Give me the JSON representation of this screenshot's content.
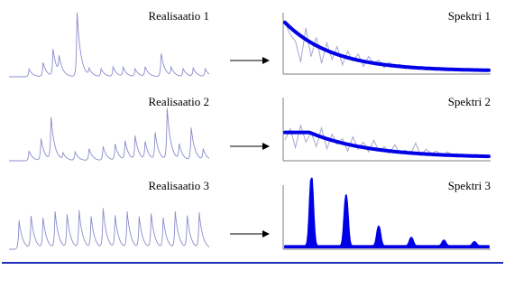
{
  "rows": [
    {
      "realization_label": "Realisaatio 1",
      "spectrum_label": "Spektri 1",
      "realization_peaks": [
        {
          "pos": 0.1,
          "h": 0.12
        },
        {
          "pos": 0.17,
          "h": 0.22
        },
        {
          "pos": 0.22,
          "h": 0.42
        },
        {
          "pos": 0.25,
          "h": 0.25
        },
        {
          "pos": 0.34,
          "h": 1.0
        },
        {
          "pos": 0.4,
          "h": 0.1
        },
        {
          "pos": 0.46,
          "h": 0.12
        },
        {
          "pos": 0.52,
          "h": 0.15
        },
        {
          "pos": 0.57,
          "h": 0.14
        },
        {
          "pos": 0.63,
          "h": 0.12
        },
        {
          "pos": 0.68,
          "h": 0.15
        },
        {
          "pos": 0.76,
          "h": 0.36
        },
        {
          "pos": 0.81,
          "h": 0.13
        },
        {
          "pos": 0.87,
          "h": 0.12
        },
        {
          "pos": 0.92,
          "h": 0.13
        },
        {
          "pos": 0.98,
          "h": 0.12
        }
      ],
      "spectrum_noisy": [
        0.92,
        0.7,
        0.58,
        0.2,
        0.82,
        0.3,
        0.65,
        0.18,
        0.55,
        0.25,
        0.48,
        0.15,
        0.4,
        0.22,
        0.35,
        0.12,
        0.3,
        0.18,
        0.24,
        0.1,
        0.2,
        0.12,
        0.16,
        0.08,
        0.13,
        0.09,
        0.11,
        0.07,
        0.1,
        0.06,
        0.08,
        0.05,
        0.07,
        0.05,
        0.06,
        0.04,
        0.05,
        0.04,
        0.04,
        0.03
      ],
      "spectrum_smooth": {
        "type": "decay",
        "start": 0.92,
        "end": 0.04,
        "rate": 4.2,
        "knee": 0.0
      }
    },
    {
      "realization_label": "Realisaatio 2",
      "spectrum_label": "Spektri 2",
      "realization_peaks": [
        {
          "pos": 0.1,
          "h": 0.18
        },
        {
          "pos": 0.16,
          "h": 0.4
        },
        {
          "pos": 0.21,
          "h": 0.78
        },
        {
          "pos": 0.27,
          "h": 0.12
        },
        {
          "pos": 0.33,
          "h": 0.16
        },
        {
          "pos": 0.4,
          "h": 0.22
        },
        {
          "pos": 0.47,
          "h": 0.26
        },
        {
          "pos": 0.53,
          "h": 0.3
        },
        {
          "pos": 0.58,
          "h": 0.35
        },
        {
          "pos": 0.63,
          "h": 0.44
        },
        {
          "pos": 0.68,
          "h": 0.33
        },
        {
          "pos": 0.73,
          "h": 0.5
        },
        {
          "pos": 0.79,
          "h": 0.95
        },
        {
          "pos": 0.85,
          "h": 0.28
        },
        {
          "pos": 0.91,
          "h": 0.6
        },
        {
          "pos": 0.97,
          "h": 0.2
        }
      ],
      "spectrum_noisy": [
        0.45,
        0.7,
        0.28,
        0.78,
        0.4,
        0.62,
        0.3,
        0.72,
        0.25,
        0.58,
        0.35,
        0.48,
        0.2,
        0.52,
        0.24,
        0.4,
        0.18,
        0.44,
        0.2,
        0.3,
        0.15,
        0.34,
        0.16,
        0.22,
        0.12,
        0.38,
        0.1,
        0.24,
        0.14,
        0.2,
        0.08,
        0.18,
        0.12,
        0.14,
        0.07,
        0.12,
        0.09,
        0.1,
        0.06,
        0.08
      ],
      "spectrum_smooth": {
        "type": "decay",
        "start": 0.62,
        "end": 0.05,
        "rate": 3.4,
        "knee": 0.12
      }
    },
    {
      "realization_label": "Realisaatio 3",
      "spectrum_label": "Spektri 3",
      "realization_peaks": [
        {
          "pos": 0.05,
          "h": 0.55
        },
        {
          "pos": 0.11,
          "h": 0.62
        },
        {
          "pos": 0.17,
          "h": 0.58
        },
        {
          "pos": 0.23,
          "h": 0.7
        },
        {
          "pos": 0.29,
          "h": 0.64
        },
        {
          "pos": 0.35,
          "h": 0.72
        },
        {
          "pos": 0.41,
          "h": 0.6
        },
        {
          "pos": 0.47,
          "h": 0.76
        },
        {
          "pos": 0.53,
          "h": 0.62
        },
        {
          "pos": 0.59,
          "h": 0.7
        },
        {
          "pos": 0.65,
          "h": 0.6
        },
        {
          "pos": 0.71,
          "h": 0.66
        },
        {
          "pos": 0.77,
          "h": 0.58
        },
        {
          "pos": 0.83,
          "h": 0.7
        },
        {
          "pos": 0.89,
          "h": 0.62
        },
        {
          "pos": 0.95,
          "h": 0.68
        }
      ],
      "spectrum_noisy": [],
      "spectrum_smooth": {
        "type": "peaks",
        "peaks": [
          {
            "pos": 0.13,
            "h": 0.98
          },
          {
            "pos": 0.3,
            "h": 0.72
          },
          {
            "pos": 0.46,
            "h": 0.28
          },
          {
            "pos": 0.62,
            "h": 0.12
          },
          {
            "pos": 0.78,
            "h": 0.08
          },
          {
            "pos": 0.93,
            "h": 0.06
          }
        ]
      }
    }
  ],
  "colors": {
    "realization": "#8a8ccc",
    "spectrum_noisy": "#a7a7cf",
    "spectrum_smooth": "#0000e6",
    "axes": "#7f7f7f",
    "arrow": "#000000",
    "footer_rule": "#1f2fb8"
  }
}
